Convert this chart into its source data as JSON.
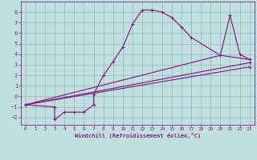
{
  "xlabel": "Windchill (Refroidissement éolien,°C)",
  "bg_color": "#c0e0e0",
  "grid_color": "#90b8b8",
  "line_color": "#882288",
  "xlim": [
    -0.5,
    23.5
  ],
  "ylim": [
    -2.7,
    9.0
  ],
  "yticks": [
    -2,
    -1,
    0,
    1,
    2,
    3,
    4,
    5,
    6,
    7,
    8
  ],
  "xticks": [
    0,
    1,
    2,
    3,
    4,
    5,
    6,
    7,
    8,
    9,
    10,
    11,
    12,
    13,
    14,
    15,
    16,
    17,
    18,
    19,
    20,
    21,
    22,
    23
  ],
  "line1_x": [
    0,
    3,
    3,
    4,
    5,
    6,
    7,
    7,
    8,
    9,
    10,
    11,
    12,
    13,
    14,
    15,
    16,
    17,
    20,
    21,
    22,
    23
  ],
  "line1_y": [
    -0.8,
    -1.0,
    -2.2,
    -1.5,
    -1.5,
    -1.5,
    -0.8,
    0.2,
    2.0,
    3.3,
    4.7,
    6.9,
    8.2,
    8.2,
    8.0,
    7.5,
    6.6,
    5.6,
    3.9,
    7.7,
    4.0,
    3.5
  ],
  "line2_x": [
    0,
    20,
    23
  ],
  "line2_y": [
    -0.8,
    3.9,
    3.5
  ],
  "line3_x": [
    0,
    23
  ],
  "line3_y": [
    -0.8,
    3.2
  ],
  "line4_x": [
    0,
    23
  ],
  "line4_y": [
    -0.8,
    2.8
  ]
}
